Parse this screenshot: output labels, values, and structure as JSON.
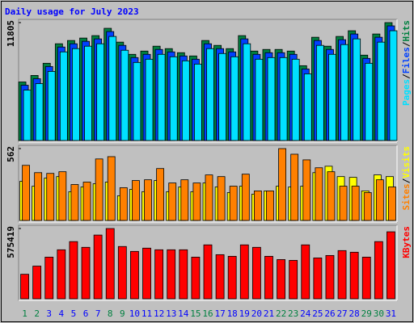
{
  "title": "Daily usage for July 2023",
  "legend_separator": "/",
  "chart_data": [
    {
      "type": "bar",
      "series": [
        {
          "name": "Hits",
          "color": "#008040",
          "values": [
            5862,
            6513,
            7734,
            9688,
            10014,
            10258,
            10502,
            11235,
            9851,
            8630,
            8955,
            9444,
            9200,
            8793,
            8467,
            10014,
            9525,
            9200,
            10502,
            8955,
            9118,
            9118,
            8955,
            7490,
            10339,
            9444,
            10421,
            10991,
            8548,
            10665,
            11805
          ]
        },
        {
          "name": "Files",
          "color": "#0040ff",
          "values": [
            5536,
            6187,
            7409,
            9362,
            9688,
            9932,
            10176,
            10909,
            9525,
            8304,
            8630,
            9118,
            8874,
            8467,
            8141,
            9688,
            9200,
            8874,
            10176,
            8630,
            8793,
            8793,
            8630,
            7164,
            10014,
            9118,
            10095,
            10665,
            8223,
            10339,
            11479
          ]
        },
        {
          "name": "Pages",
          "color": "#00e0ff",
          "values": [
            5047,
            5699,
            6920,
            8874,
            9200,
            9444,
            9688,
            10421,
            9037,
            7816,
            8141,
            8630,
            8385,
            7978,
            7653,
            9200,
            8711,
            8385,
            9688,
            8141,
            8304,
            8304,
            8141,
            6676,
            9525,
            8630,
            9606,
            10176,
            7734,
            9851,
            10991
          ]
        }
      ],
      "ylim": [
        0,
        11805
      ],
      "yticks": [
        11805
      ]
    },
    {
      "type": "bar",
      "series": [
        {
          "name": "Visits",
          "color": "#ffff00",
          "values": [
            306,
            268,
            331,
            343,
            225,
            262,
            287,
            300,
            193,
            243,
            225,
            312,
            225,
            262,
            225,
            293,
            262,
            218,
            268,
            206,
            231,
            268,
            262,
            268,
            374,
            424,
            343,
            337,
            231,
            356,
            343
          ]
        },
        {
          "name": "Sites",
          "color": "#ff8000",
          "values": [
            431,
            374,
            368,
            381,
            281,
            300,
            481,
            499,
            256,
            312,
            318,
            406,
            293,
            318,
            293,
            356,
            343,
            268,
            362,
            231,
            231,
            562,
            518,
            474,
            412,
            381,
            268,
            268,
            218,
            318,
            262
          ]
        }
      ],
      "ylim": [
        0,
        562
      ],
      "yticks": [
        562
      ]
    },
    {
      "type": "bar",
      "series": [
        {
          "name": "KBytes",
          "color": "#ff0000",
          "values": [
            200730,
            267640,
            341241,
            401460,
            468370,
            421533,
            521898,
            575419,
            428224,
            388078,
            414842,
            401460,
            401460,
            401460,
            341241,
            441606,
            361314,
            347932,
            441606,
            421533,
            347932,
            321168,
            314477,
            441606,
            334550,
            354623,
            394769,
            381387,
            341241,
            468370,
            548662
          ]
        }
      ],
      "categories": [
        "1",
        "2",
        "3",
        "4",
        "5",
        "6",
        "7",
        "8",
        "9",
        "10",
        "11",
        "12",
        "13",
        "14",
        "15",
        "16",
        "17",
        "18",
        "19",
        "20",
        "21",
        "22",
        "23",
        "24",
        "25",
        "26",
        "27",
        "28",
        "29",
        "30",
        "31"
      ],
      "category_colors": [
        "#008040",
        "#008040",
        "#0000ff",
        "#0000ff",
        "#0000ff",
        "#0000ff",
        "#0000ff",
        "#008040",
        "#008040",
        "#0000ff",
        "#0000ff",
        "#0000ff",
        "#0000ff",
        "#0000ff",
        "#008040",
        "#008040",
        "#0000ff",
        "#0000ff",
        "#0000ff",
        "#0000ff",
        "#0000ff",
        "#008040",
        "#008040",
        "#0000ff",
        "#0000ff",
        "#0000ff",
        "#0000ff",
        "#0000ff",
        "#008040",
        "#008040",
        "#0000ff"
      ],
      "ylim": [
        0,
        575419
      ],
      "yticks": [
        575419
      ]
    }
  ]
}
